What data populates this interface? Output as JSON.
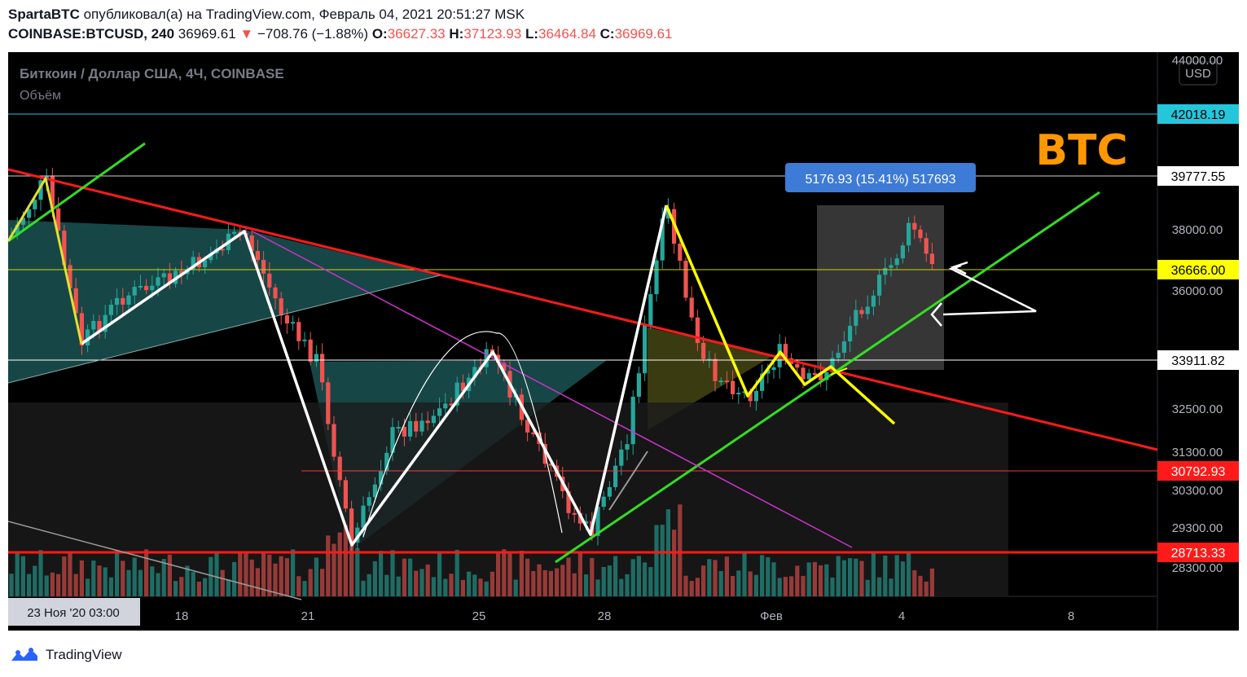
{
  "header": {
    "publish_line_user": "SpartaBTC",
    "publish_line_text": "опубликовал(а) на TradingView.com, Февраль 04, 2021 20:51:27 MSK",
    "symbol": "COINBASE:BTCUSD, 240",
    "last": "36969.61",
    "change_arrow": "▼",
    "change": "−708.76 (−1.88%)",
    "o_label": "O:",
    "o_value": "36627.33",
    "h_label": "H:",
    "h_value": "37123.93",
    "l_label": "L:",
    "l_value": "36464.84",
    "c_label": "C:",
    "c_value": "36969.61"
  },
  "legend": {
    "title": "Биткоин / Доллар США, 4Ч, COINBASE",
    "volume_label": "Объём",
    "currency_button": "USD"
  },
  "annotation": {
    "measure_label": "5176.93 (15.41%) 517693",
    "ticker_text": "BTC"
  },
  "price_badges": [
    {
      "value": "42018.19",
      "color": "#26c6da",
      "text_color": "#000000"
    },
    {
      "value": "39777.55",
      "color": "#ffffff",
      "text_color": "#000000"
    },
    {
      "value": "36666.00",
      "color": "#ffff00",
      "text_color": "#000000"
    },
    {
      "value": "33911.82",
      "color": "#ffffff",
      "text_color": "#000000"
    },
    {
      "value": "30792.93",
      "color": "#ff1a1a",
      "text_color": "#ffffff"
    },
    {
      "value": "28713.33",
      "color": "#ff1a1a",
      "text_color": "#ffffff"
    }
  ],
  "footer": {
    "brand": "TradingView",
    "logo_icon": "tradingview-cloud-icon"
  },
  "chart_data": {
    "type": "candlestick",
    "title": "Биткоин / Доллар США, 4Ч, COINBASE",
    "y_ticks": [
      "44000.00",
      "38000.00",
      "36000.00",
      "32500.00",
      "31300.00",
      "30300.00",
      "29300.00",
      "28300.00"
    ],
    "x_ticks": [
      "23 Ноя '20 03:00",
      "18",
      "21",
      "25",
      "28",
      "Фев",
      "4",
      "8"
    ],
    "horizontal_levels": [
      42018.19,
      39777.55,
      36666.0,
      33911.82,
      30792.93,
      28713.33
    ],
    "measure": {
      "change": 5176.93,
      "percent": 15.41
    },
    "volume_series": "Объём",
    "colors": {
      "up": "#26a69a",
      "down": "#ef5350",
      "background": "#000000",
      "trendline_red": "#ff1a1a",
      "trendline_green": "#33dd22",
      "pattern_yellow": "#ffff00"
    }
  }
}
